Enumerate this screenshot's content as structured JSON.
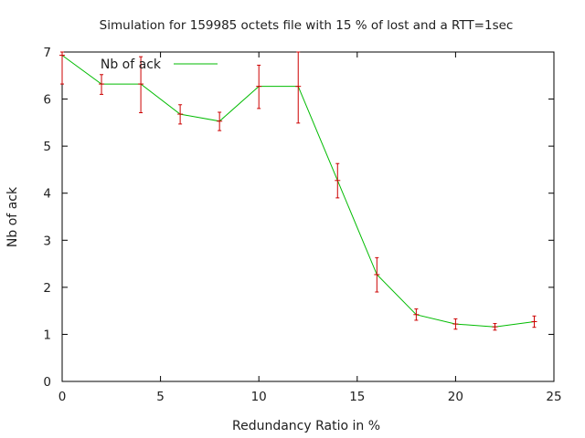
{
  "chart_data": {
    "type": "line",
    "title": "Simulation for 159985 octets file with 15 % of lost and a RTT=1sec",
    "xlabel": "Redundancy Ratio in %",
    "ylabel": "Nb of ack",
    "xlim": [
      0,
      25
    ],
    "ylim": [
      0,
      7
    ],
    "xticks": [
      0,
      5,
      10,
      15,
      20,
      25
    ],
    "yticks": [
      0,
      1,
      2,
      3,
      4,
      5,
      6,
      7
    ],
    "grid": false,
    "legend_position": "top-left",
    "series": [
      {
        "name": "Nb of ack",
        "color": "#00bb00",
        "error_color": "#cc0000",
        "x": [
          0,
          2,
          4,
          6,
          8,
          10,
          12,
          14,
          16,
          18,
          20,
          22,
          24
        ],
        "y": [
          6.93,
          6.32,
          6.32,
          5.68,
          5.53,
          6.27,
          6.27,
          4.27,
          2.27,
          1.42,
          1.22,
          1.16,
          1.27
        ],
        "yerr_low": [
          6.32,
          6.1,
          5.71,
          5.47,
          5.33,
          5.8,
          5.49,
          3.9,
          1.9,
          1.3,
          1.11,
          1.09,
          1.15
        ],
        "yerr_high": [
          7.0,
          6.52,
          6.9,
          5.88,
          5.72,
          6.72,
          7.2,
          4.63,
          2.63,
          1.54,
          1.33,
          1.23,
          1.39
        ]
      }
    ]
  }
}
